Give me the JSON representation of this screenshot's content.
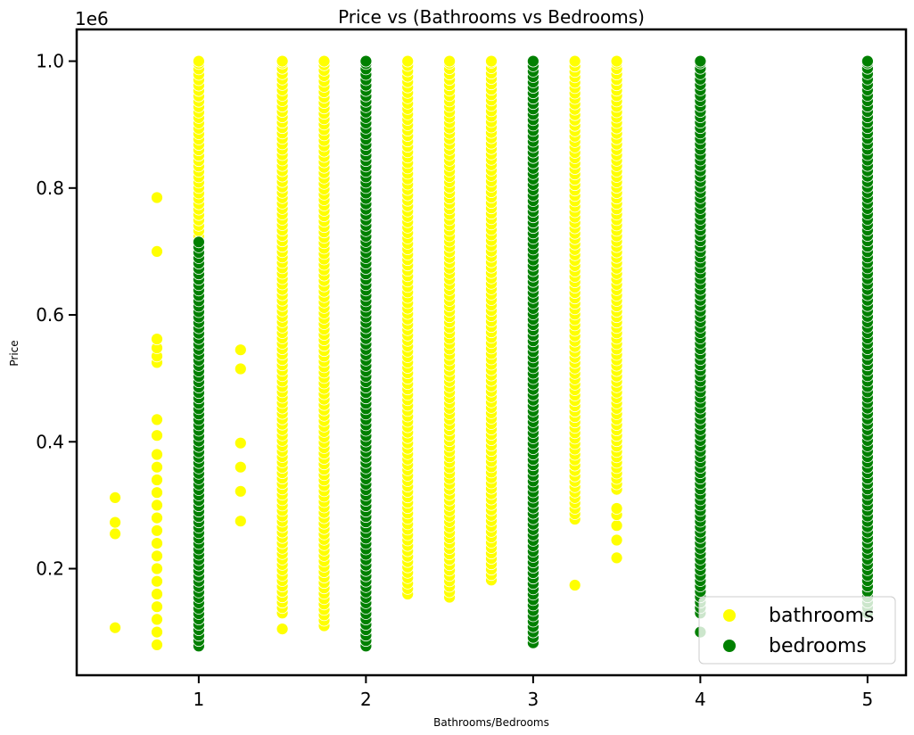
{
  "chart_data": {
    "type": "scatter",
    "title": "Price vs (Bathrooms vs Bedrooms)",
    "xlabel": "Bathrooms/Bedrooms",
    "ylabel": "Price",
    "y_offset_label": "1e6",
    "xlim": [
      0.27,
      5.23
    ],
    "ylim": [
      0.032,
      1.05
    ],
    "x_ticks": [
      1,
      2,
      3,
      4,
      5
    ],
    "x_tick_labels": [
      "1",
      "2",
      "3",
      "4",
      "5"
    ],
    "y_ticks": [
      0.2,
      0.4,
      0.6,
      0.8,
      1.0
    ],
    "y_tick_labels": [
      "0.2",
      "0.4",
      "0.6",
      "0.8",
      "1.0"
    ],
    "grid": false,
    "legend_position": "lower right",
    "series": [
      {
        "name": "bathrooms",
        "color": "#ffff00",
        "groups": [
          {
            "x": 0.5,
            "values": [
              0.107,
              0.255,
              0.273,
              0.312
            ]
          },
          {
            "x": 0.75,
            "values": [
              0.08,
              0.1,
              0.12,
              0.14,
              0.16,
              0.18,
              0.2,
              0.22,
              0.24,
              0.26,
              0.28,
              0.3,
              0.32,
              0.34,
              0.36,
              0.38,
              0.41,
              0.435,
              0.525,
              0.535,
              0.548,
              0.562,
              0.7,
              0.785
            ]
          },
          {
            "x": 1.0,
            "range": [
              0.078,
              1.0
            ]
          },
          {
            "x": 1.25,
            "values": [
              0.275,
              0.322,
              0.36,
              0.398,
              0.515,
              0.545
            ]
          },
          {
            "x": 1.5,
            "values": [
              0.105
            ],
            "range": [
              0.13,
              1.0
            ]
          },
          {
            "x": 1.75,
            "range": [
              0.11,
              1.0
            ]
          },
          {
            "x": 2.0,
            "range": [
              0.08,
              1.0
            ]
          },
          {
            "x": 2.25,
            "range": [
              0.16,
              1.0
            ]
          },
          {
            "x": 2.5,
            "range": [
              0.155,
              1.0
            ]
          },
          {
            "x": 2.75,
            "range": [
              0.182,
              1.0
            ]
          },
          {
            "x": 3.0,
            "range": [
              0.09,
              1.0
            ]
          },
          {
            "x": 3.25,
            "values": [
              0.174
            ],
            "range": [
              0.278,
              1.0
            ]
          },
          {
            "x": 3.5,
            "values": [
              0.217,
              0.245,
              0.268,
              0.285,
              0.295
            ],
            "range": [
              0.325,
              1.0
            ]
          }
        ]
      },
      {
        "name": "bedrooms",
        "color": "#008000",
        "groups": [
          {
            "x": 1.0,
            "range": [
              0.078,
              0.715
            ]
          },
          {
            "x": 2.0,
            "range": [
              0.078,
              1.0
            ]
          },
          {
            "x": 3.0,
            "range": [
              0.083,
              1.0
            ]
          },
          {
            "x": 4.0,
            "values": [
              0.1
            ],
            "range": [
              0.13,
              1.0
            ]
          },
          {
            "x": 5.0,
            "range": [
              0.13,
              1.0
            ]
          }
        ]
      }
    ]
  }
}
